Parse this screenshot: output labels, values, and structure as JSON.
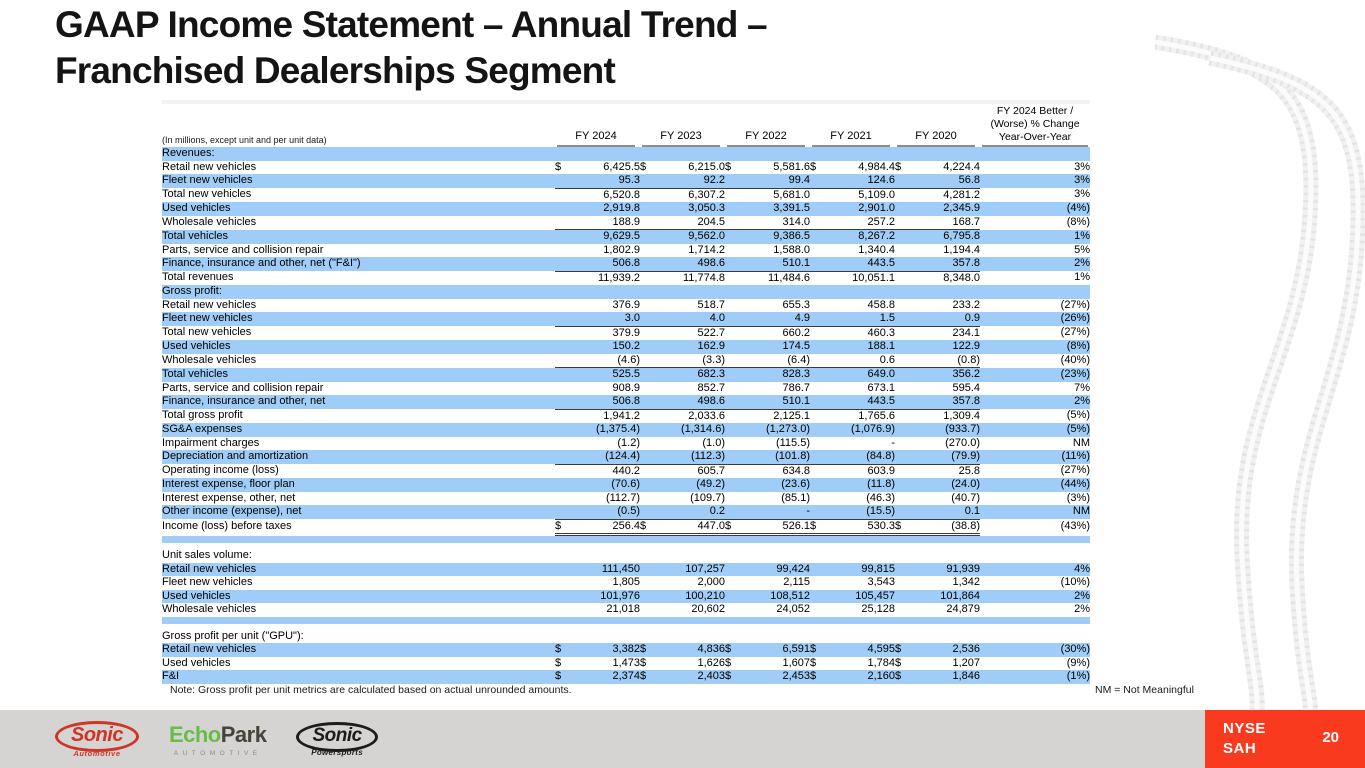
{
  "slide": {
    "title_line1": "GAAP Income Statement – Annual Trend –",
    "title_line2": "Franchised Dealerships Segment",
    "note": "Note: Gross profit per unit metrics are calculated based on actual unrounded amounts.",
    "nm_note": "NM = Not Meaningful",
    "ticker_line1": "NYSE",
    "ticker_line2": "SAH",
    "page_number": "20"
  },
  "colors": {
    "row_blue": "#9fcdf7",
    "accent_red": "#fa3a1e",
    "footer_gray": "#d5d4d2",
    "logo_red": "#cf3526",
    "logo_green": "#67bd45",
    "logo_black": "#1c1c1a"
  },
  "logos": {
    "sonic": {
      "name": "Sonic",
      "sub": "Automotive"
    },
    "echopark": {
      "part1": "Echo",
      "part2": "Park",
      "sub": "AUTOMOTIVE"
    },
    "powersports": {
      "name": "Sonic",
      "sub": "Powersports"
    }
  },
  "table": {
    "unit_note": "(In millions, except unit and per unit data)",
    "col_headers": [
      "FY 2024",
      "FY 2023",
      "FY 2022",
      "FY 2021",
      "FY 2020"
    ],
    "yoy_header": [
      "FY 2024 Better /",
      "(Worse) % Change",
      "Year-Over-Year"
    ],
    "rows": [
      {
        "t": "s",
        "label": "Revenues:",
        "bg": "b"
      },
      {
        "t": "d",
        "label": "Retail new vehicles",
        "ind": 1,
        "bg": "w",
        "d": true,
        "v": [
          "6,425.5",
          "6,215.0",
          "5,581.6",
          "4,984.4",
          "4,224.4"
        ],
        "yoy": "3%"
      },
      {
        "t": "d",
        "label": "Fleet new vehicles",
        "ind": 1,
        "bg": "b",
        "v": [
          "95.3",
          "92.2",
          "99.4",
          "124.6",
          "56.8"
        ],
        "yoy": "3%",
        "line": "u"
      },
      {
        "t": "d",
        "label": "Total new vehicles",
        "ind": 2,
        "bg": "w",
        "v": [
          "6,520.8",
          "6,307.2",
          "5,681.0",
          "5,109.0",
          "4,281.2"
        ],
        "yoy": "3%"
      },
      {
        "t": "d",
        "label": "Used vehicles",
        "ind": 1,
        "bg": "b",
        "v": [
          "2,919.8",
          "3,050.3",
          "3,391.5",
          "2,901.0",
          "2,345.9"
        ],
        "yoy": "(4%)"
      },
      {
        "t": "d",
        "label": "Wholesale vehicles",
        "ind": 1,
        "bg": "w",
        "v": [
          "188.9",
          "204.5",
          "314.0",
          "257.2",
          "168.7"
        ],
        "yoy": "(8%)",
        "line": "u"
      },
      {
        "t": "d",
        "label": "Total vehicles",
        "ind": 2,
        "bg": "b",
        "v": [
          "9,629.5",
          "9,562.0",
          "9,386.5",
          "8,267.2",
          "6,795.8"
        ],
        "yoy": "1%"
      },
      {
        "t": "d",
        "label": "Parts, service and collision repair",
        "ind": 1,
        "bg": "w",
        "v": [
          "1,802.9",
          "1,714.2",
          "1,588.0",
          "1,340.4",
          "1,194.4"
        ],
        "yoy": "5%"
      },
      {
        "t": "d",
        "label": "Finance, insurance and other, net (\"F&I\")",
        "ind": 1,
        "bg": "b",
        "v": [
          "506.8",
          "498.6",
          "510.1",
          "443.5",
          "357.8"
        ],
        "yoy": "2%",
        "line": "u"
      },
      {
        "t": "d",
        "label": "Total revenues",
        "ind": 2,
        "bg": "w",
        "v": [
          "11,939.2",
          "11,774.8",
          "11,484.6",
          "10,051.1",
          "8,348.0"
        ],
        "yoy": "1%"
      },
      {
        "t": "s",
        "label": "Gross profit:",
        "bg": "b"
      },
      {
        "t": "d",
        "label": "Retail new vehicles",
        "ind": 1,
        "bg": "w",
        "v": [
          "376.9",
          "518.7",
          "655.3",
          "458.8",
          "233.2"
        ],
        "yoy": "(27%)"
      },
      {
        "t": "d",
        "label": "Fleet new vehicles",
        "ind": 1,
        "bg": "b",
        "v": [
          "3.0",
          "4.0",
          "4.9",
          "1.5",
          "0.9"
        ],
        "yoy": "(26%)",
        "line": "u"
      },
      {
        "t": "d",
        "label": "Total new vehicles",
        "ind": 2,
        "bg": "w",
        "v": [
          "379.9",
          "522.7",
          "660.2",
          "460.3",
          "234.1"
        ],
        "yoy": "(27%)"
      },
      {
        "t": "d",
        "label": "Used vehicles",
        "ind": 1,
        "bg": "b",
        "v": [
          "150.2",
          "162.9",
          "174.5",
          "188.1",
          "122.9"
        ],
        "yoy": "(8%)"
      },
      {
        "t": "d",
        "label": "Wholesale vehicles",
        "ind": 1,
        "bg": "w",
        "v": [
          "(4.6)",
          "(3.3)",
          "(6.4)",
          "0.6",
          "(0.8)"
        ],
        "yoy": "(40%)",
        "line": "u"
      },
      {
        "t": "d",
        "label": "Total vehicles",
        "ind": 2,
        "bg": "b",
        "v": [
          "525.5",
          "682.3",
          "828.3",
          "649.0",
          "356.2"
        ],
        "yoy": "(23%)"
      },
      {
        "t": "d",
        "label": "Parts, service and collision repair",
        "ind": 1,
        "bg": "w",
        "v": [
          "908.9",
          "852.7",
          "786.7",
          "673.1",
          "595.4"
        ],
        "yoy": "7%"
      },
      {
        "t": "d",
        "label": "Finance, insurance and other, net",
        "ind": 1,
        "bg": "b",
        "v": [
          "506.8",
          "498.6",
          "510.1",
          "443.5",
          "357.8"
        ],
        "yoy": "2%",
        "line": "u"
      },
      {
        "t": "d",
        "label": "Total gross profit",
        "ind": 2,
        "bg": "w",
        "v": [
          "1,941.2",
          "2,033.6",
          "2,125.1",
          "1,765.6",
          "1,309.4"
        ],
        "yoy": "(5%)"
      },
      {
        "t": "d",
        "label": "SG&A expenses",
        "ind": 1,
        "bg": "b",
        "v": [
          "(1,375.4)",
          "(1,314.6)",
          "(1,273.0)",
          "(1,076.9)",
          "(933.7)"
        ],
        "yoy": "(5%)"
      },
      {
        "t": "d",
        "label": "Impairment charges",
        "ind": 1,
        "bg": "w",
        "v": [
          "(1.2)",
          "(1.0)",
          "(115.5)",
          "-",
          "(270.0)"
        ],
        "yoy": "NM"
      },
      {
        "t": "d",
        "label": "Depreciation and amortization",
        "ind": 1,
        "bg": "b",
        "v": [
          "(124.4)",
          "(112.3)",
          "(101.8)",
          "(84.8)",
          "(79.9)"
        ],
        "yoy": "(11%)",
        "line": "u"
      },
      {
        "t": "d",
        "label": "Operating income (loss)",
        "ind": 2,
        "bg": "w",
        "v": [
          "440.2",
          "605.7",
          "634.8",
          "603.9",
          "25.8"
        ],
        "yoy": "(27%)"
      },
      {
        "t": "d",
        "label": "Interest expense, floor plan",
        "ind": 1,
        "bg": "b",
        "v": [
          "(70.6)",
          "(49.2)",
          "(23.6)",
          "(11.8)",
          "(24.0)"
        ],
        "yoy": "(44%)"
      },
      {
        "t": "d",
        "label": "Interest expense, other, net",
        "ind": 1,
        "bg": "w",
        "v": [
          "(112.7)",
          "(109.7)",
          "(85.1)",
          "(46.3)",
          "(40.7)"
        ],
        "yoy": "(3%)"
      },
      {
        "t": "d",
        "label": "Other income (expense), net",
        "ind": 1,
        "bg": "b",
        "v": [
          "(0.5)",
          "0.2",
          "-",
          "(15.5)",
          "0.1"
        ],
        "yoy": "NM",
        "line": "u"
      },
      {
        "t": "d",
        "label": "Income (loss) before taxes",
        "ind": 2,
        "bg": "w",
        "d": true,
        "v": [
          "256.4",
          "447.0",
          "526.1",
          "530.3",
          "(38.8)"
        ],
        "yoy": "(43%)",
        "line": "dbl"
      },
      {
        "t": "sp",
        "bg": "b",
        "h": 7
      },
      {
        "t": "sp",
        "bg": "w",
        "h": 6
      },
      {
        "t": "s",
        "label": "Unit sales volume:",
        "bg": "w"
      },
      {
        "t": "d",
        "label": "Retail new vehicles",
        "ind": 1,
        "bg": "b",
        "v": [
          "111,450",
          "107,257",
          "99,424",
          "99,815",
          "91,939"
        ],
        "yoy": "4%"
      },
      {
        "t": "d",
        "label": "Fleet new vehicles",
        "ind": 1,
        "bg": "w",
        "v": [
          "1,805",
          "2,000",
          "2,115",
          "3,543",
          "1,342"
        ],
        "yoy": "(10%)"
      },
      {
        "t": "d",
        "label": "Used vehicles",
        "ind": 1,
        "bg": "b",
        "v": [
          "101,976",
          "100,210",
          "108,512",
          "105,457",
          "101,864"
        ],
        "yoy": "2%"
      },
      {
        "t": "d",
        "label": "Wholesale vehicles",
        "ind": 1,
        "bg": "w",
        "v": [
          "21,018",
          "20,602",
          "24,052",
          "25,128",
          "24,879"
        ],
        "yoy": "2%"
      },
      {
        "t": "sp",
        "bg": "b",
        "h": 7
      },
      {
        "t": "sp",
        "bg": "w",
        "h": 6
      },
      {
        "t": "s",
        "label": "Gross profit per unit (\"GPU\"):",
        "bg": "w"
      },
      {
        "t": "d",
        "label": "Retail new vehicles",
        "ind": 1,
        "bg": "b",
        "d": true,
        "v": [
          "3,382",
          "4,836",
          "6,591",
          "4,595",
          "2,536"
        ],
        "yoy": "(30%)"
      },
      {
        "t": "d",
        "label": "Used vehicles",
        "ind": 1,
        "bg": "w",
        "d": true,
        "v": [
          "1,473",
          "1,626",
          "1,607",
          "1,784",
          "1,207"
        ],
        "yoy": "(9%)"
      },
      {
        "t": "d",
        "label": "F&I",
        "ind": 1,
        "bg": "b",
        "d": true,
        "v": [
          "2,374",
          "2,403",
          "2,453",
          "2,160",
          "1,846"
        ],
        "yoy": "(1%)"
      }
    ]
  }
}
